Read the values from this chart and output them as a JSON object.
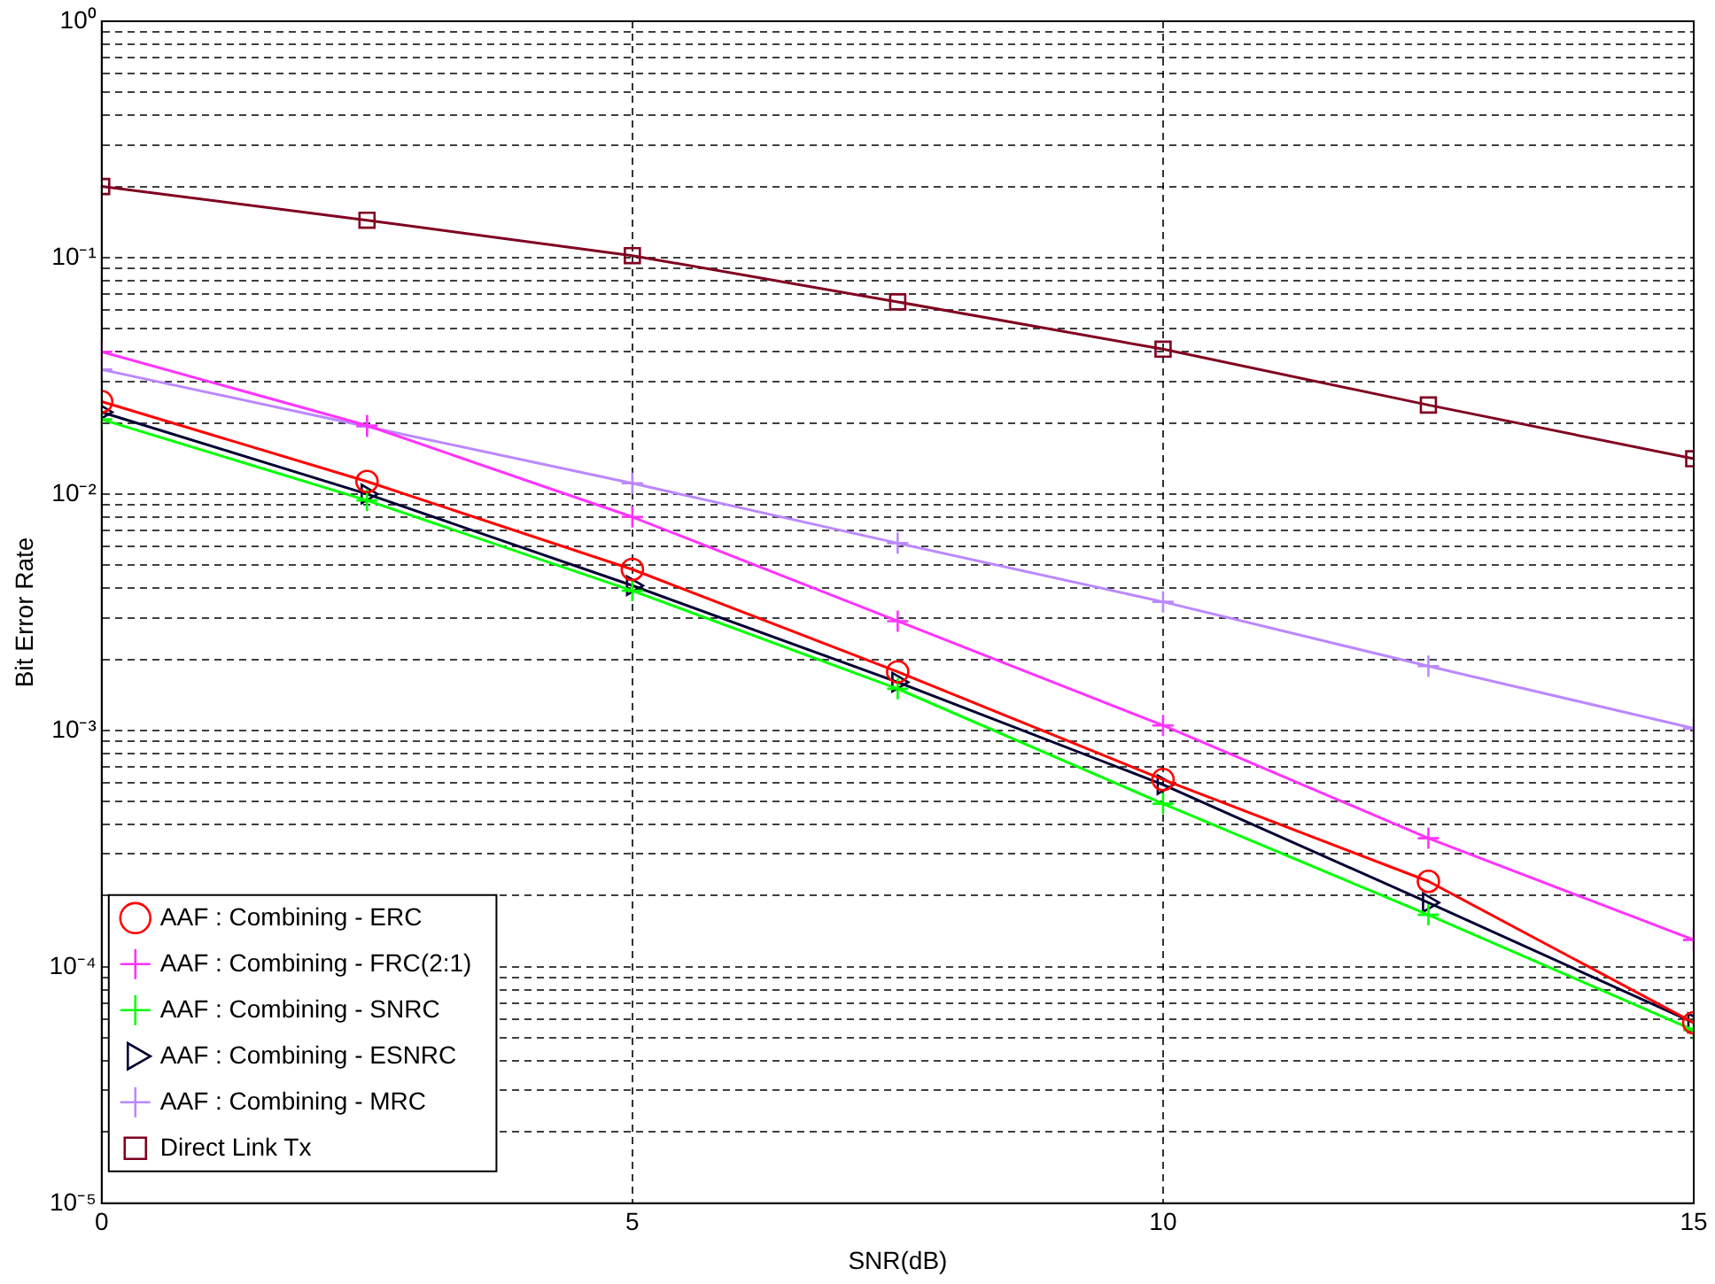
{
  "chart_data": {
    "type": "line",
    "xlabel": "SNR(dB)",
    "ylabel": "Bit Error Rate",
    "log": "y",
    "grid": true,
    "line_style": "solid",
    "legend": "bottom left",
    "xlim": [
      0,
      15
    ],
    "xticks": [
      0,
      5,
      10,
      15
    ],
    "ylim": [
      1e-05,
      1
    ],
    "yticks": [
      {
        "value": 1e-05,
        "label": "10⁻⁵"
      },
      {
        "value": 2e-05,
        "label": null
      },
      {
        "value": 3e-05,
        "label": null
      },
      {
        "value": 4e-05,
        "label": null
      },
      {
        "value": 5e-05,
        "label": null
      },
      {
        "value": 6e-05,
        "label": null
      },
      {
        "value": 7e-05,
        "label": null
      },
      {
        "value": 8e-05,
        "label": null
      },
      {
        "value": 9e-05,
        "label": null
      },
      {
        "value": 0.0001,
        "label": "10⁻⁴"
      },
      {
        "value": 0.0002,
        "label": null
      },
      {
        "value": 0.0003,
        "label": null
      },
      {
        "value": 0.0004,
        "label": null
      },
      {
        "value": 0.0005,
        "label": null
      },
      {
        "value": 0.0006,
        "label": null
      },
      {
        "value": 0.0007,
        "label": null
      },
      {
        "value": 0.0008,
        "label": null
      },
      {
        "value": 0.0009,
        "label": null
      },
      {
        "value": 0.001,
        "label": "10⁻³"
      },
      {
        "value": 0.002,
        "label": null
      },
      {
        "value": 0.003,
        "label": null
      },
      {
        "value": 0.004,
        "label": null
      },
      {
        "value": 0.005,
        "label": null
      },
      {
        "value": 0.006,
        "label": null
      },
      {
        "value": 0.007,
        "label": null
      },
      {
        "value": 0.008,
        "label": null
      },
      {
        "value": 0.009,
        "label": null
      },
      {
        "value": 0.01,
        "label": "10⁻²"
      },
      {
        "value": 0.02,
        "label": null
      },
      {
        "value": 0.03,
        "label": null
      },
      {
        "value": 0.04,
        "label": null
      },
      {
        "value": 0.05,
        "label": null
      },
      {
        "value": 0.06,
        "label": null
      },
      {
        "value": 0.07,
        "label": null
      },
      {
        "value": 0.08,
        "label": null
      },
      {
        "value": 0.09,
        "label": null
      },
      {
        "value": 0.1,
        "label": "10⁻¹"
      },
      {
        "value": 0.2,
        "label": null
      },
      {
        "value": 0.3,
        "label": null
      },
      {
        "value": 0.4,
        "label": null
      },
      {
        "value": 0.5,
        "label": null
      },
      {
        "value": 0.6,
        "label": null
      },
      {
        "value": 0.7,
        "label": null
      },
      {
        "value": 0.8,
        "label": null
      },
      {
        "value": 0.9,
        "label": null
      },
      {
        "value": 1,
        "label": "10⁰"
      }
    ],
    "x": [
      0,
      2.5,
      5,
      7.5,
      10,
      12.5,
      15
    ],
    "series": [
      {
        "name": "AAF : Combining - ERC",
        "color": "#ff0000",
        "marker": "circle",
        "values": [
          0.0246,
          0.0113,
          0.0048,
          0.00177,
          0.00062,
          0.00023,
          5.8e-05
        ]
      },
      {
        "name": "AAF : Combining - FRC(2:1)",
        "color": "#ff33ff",
        "marker": "cross",
        "values": [
          0.04,
          0.0195,
          0.008,
          0.0029,
          0.00105,
          0.00035,
          0.00013
        ]
      },
      {
        "name": "AAF : Combining - SNRC",
        "color": "#00ff00",
        "marker": "cross",
        "values": [
          0.0207,
          0.0094,
          0.0039,
          0.0015,
          0.00049,
          0.000166,
          5.4e-05
        ]
      },
      {
        "name": "AAF : Combining - ESNRC",
        "color": "#000033",
        "marker": "triangle",
        "values": [
          0.0222,
          0.01,
          0.0041,
          0.0016,
          0.00059,
          0.000187,
          5.8e-05
        ]
      },
      {
        "name": "AAF : Combining - MRC",
        "color": "#bb88ff",
        "marker": "cross",
        "values": [
          0.0336,
          0.0193,
          0.0111,
          0.0062,
          0.0035,
          0.00187,
          0.00102
        ]
      },
      {
        "name": "Direct Link Tx",
        "color": "#800020",
        "marker": "square",
        "values": [
          0.2,
          0.144,
          0.102,
          0.065,
          0.041,
          0.0238,
          0.0141
        ]
      }
    ]
  }
}
